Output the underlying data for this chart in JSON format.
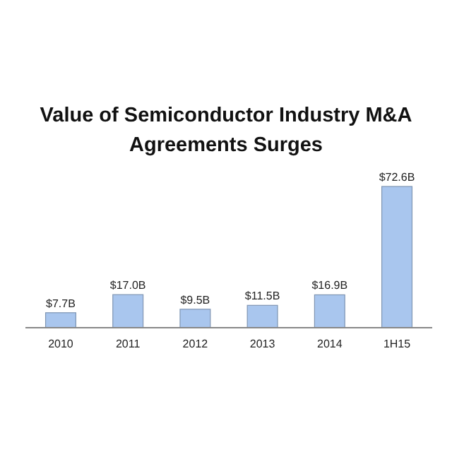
{
  "chart_data": {
    "type": "bar",
    "title": "Value of Semiconductor Industry M&A Agreements Surges",
    "categories": [
      "2010",
      "2011",
      "2012",
      "2013",
      "2014",
      "1H15"
    ],
    "values": [
      7.7,
      17.0,
      9.5,
      11.5,
      16.9,
      72.6
    ],
    "value_labels": [
      "$7.7B",
      "$17.0B",
      "$9.5B",
      "$11.5B",
      "$16.9B",
      "$72.6B"
    ],
    "color": "#a9c6ee"
  }
}
